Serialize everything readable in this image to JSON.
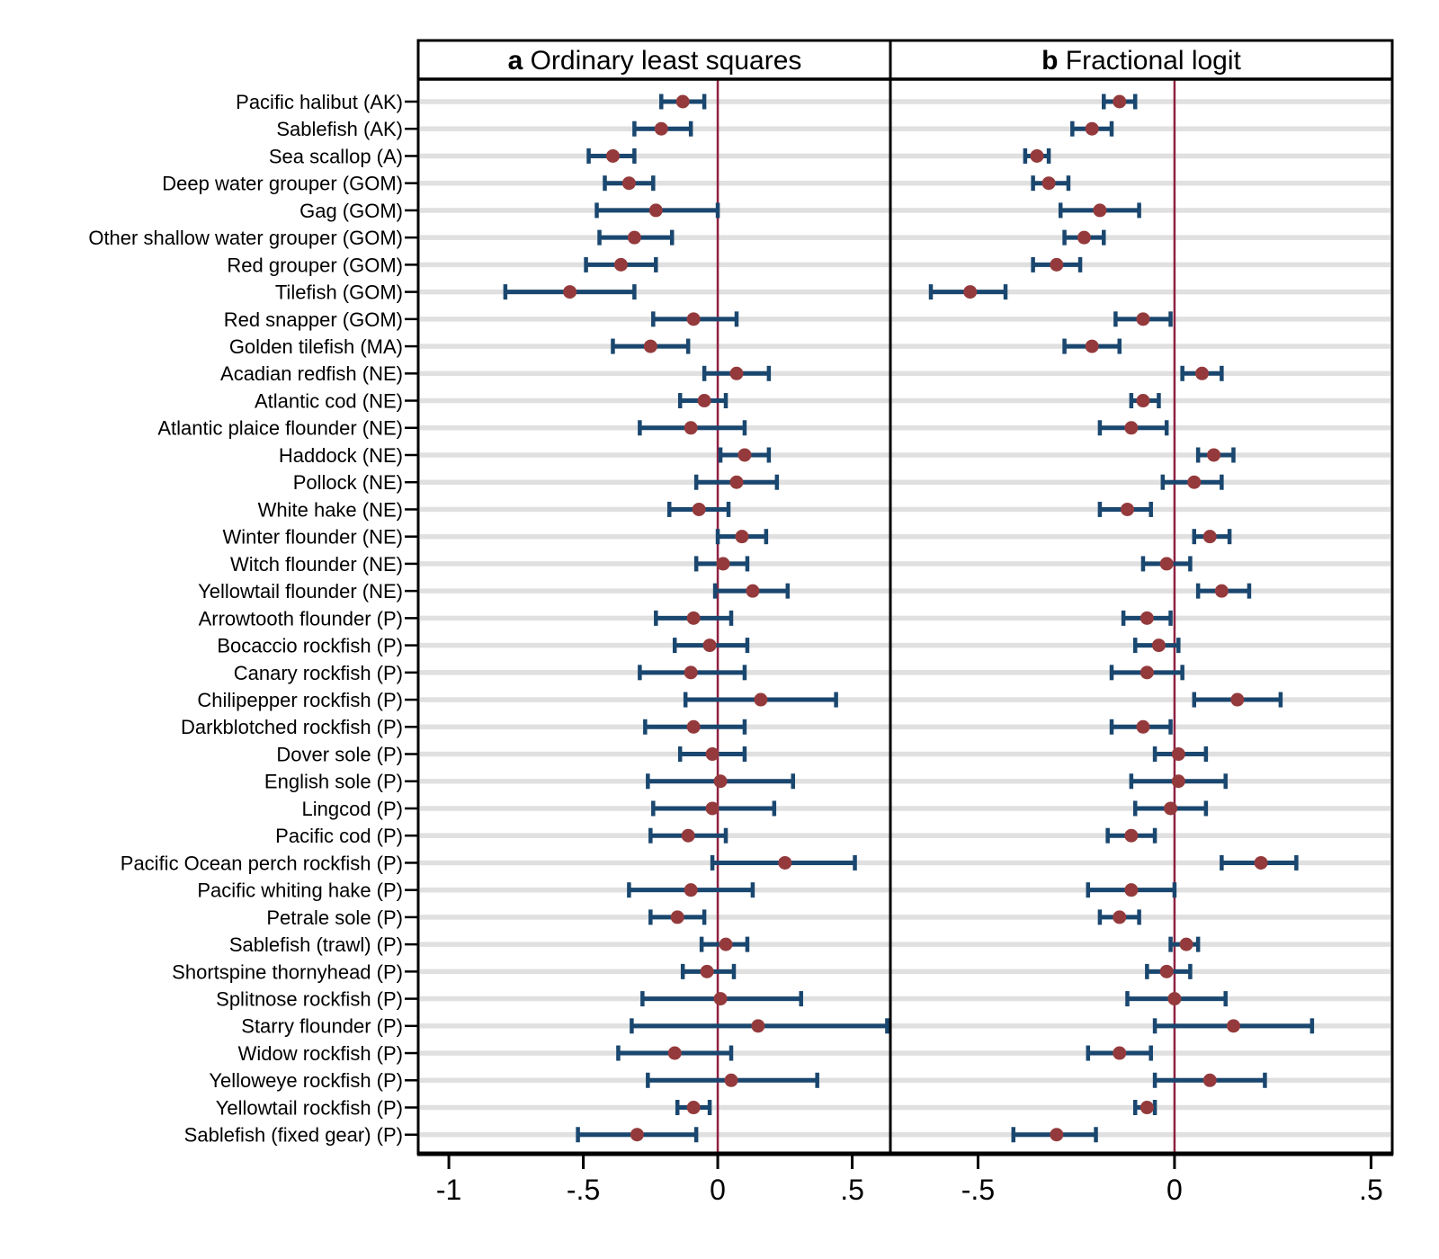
{
  "panels": [
    {
      "prefix": "a",
      "title": " Ordinary least squares",
      "xlim": [
        -1.114,
        0.642
      ],
      "ticks": [
        {
          "v": -1.0,
          "label": "-1"
        },
        {
          "v": -0.5,
          "label": "-.5"
        },
        {
          "v": 0.0,
          "label": "0"
        },
        {
          "v": 0.5,
          "label": ".5"
        }
      ]
    },
    {
      "prefix": "b",
      "title": " Fractional logit",
      "xlim": [
        -0.723,
        0.554
      ],
      "ticks": [
        {
          "v": -0.5,
          "label": "-.5"
        },
        {
          "v": 0.0,
          "label": "0"
        },
        {
          "v": 0.5,
          "label": ".5"
        }
      ]
    }
  ],
  "chart_data": {
    "type": "forest-dot-ci",
    "orientation": "horizontal",
    "grid": true,
    "zero_line": 0,
    "categories": [
      "Pacific halibut (AK)",
      "Sablefish (AK)",
      "Sea scallop (A)",
      "Deep water grouper (GOM)",
      "Gag (GOM)",
      "Other shallow water grouper (GOM)",
      "Red grouper (GOM)",
      "Tilefish (GOM)",
      "Red snapper (GOM)",
      "Golden tilefish (MA)",
      "Acadian redfish (NE)",
      "Atlantic cod (NE)",
      "Atlantic plaice flounder (NE)",
      "Haddock (NE)",
      "Pollock (NE)",
      "White hake (NE)",
      "Winter flounder (NE)",
      "Witch flounder (NE)",
      "Yellowtail flounder (NE)",
      "Arrowtooth flounder (P)",
      "Bocaccio rockfish (P)",
      "Canary rockfish (P)",
      "Chilipepper rockfish (P)",
      "Darkblotched rockfish (P)",
      "Dover sole (P)",
      "English sole (P)",
      "Lingcod (P)",
      "Pacific cod (P)",
      "Pacific Ocean perch rockfish (P)",
      "Pacific whiting hake (P)",
      "Petrale sole (P)",
      "Sablefish (trawl) (P)",
      "Shortspine thornyhead (P)",
      "Splitnose rockfish (P)",
      "Starry flounder (P)",
      "Widow rockfish (P)",
      "Yelloweye rockfish (P)",
      "Yellowtail rockfish (P)",
      "Sablefish (fixed gear) (P)"
    ],
    "series": [
      {
        "name": "Ordinary least squares",
        "estimates": [
          -0.13,
          -0.21,
          -0.39,
          -0.33,
          -0.23,
          -0.31,
          -0.36,
          -0.55,
          -0.09,
          -0.25,
          0.07,
          -0.05,
          -0.1,
          0.1,
          0.07,
          -0.07,
          0.09,
          0.02,
          0.13,
          -0.09,
          -0.03,
          -0.1,
          0.16,
          -0.09,
          -0.02,
          0.01,
          -0.02,
          -0.11,
          0.25,
          -0.1,
          -0.15,
          0.03,
          -0.04,
          0.01,
          0.15,
          -0.16,
          0.05,
          -0.09,
          -0.3
        ],
        "ci_low": [
          -0.21,
          -0.31,
          -0.48,
          -0.42,
          -0.45,
          -0.44,
          -0.49,
          -0.79,
          -0.24,
          -0.39,
          -0.05,
          -0.14,
          -0.29,
          0.01,
          -0.08,
          -0.18,
          0.0,
          -0.08,
          -0.01,
          -0.23,
          -0.16,
          -0.29,
          -0.12,
          -0.27,
          -0.14,
          -0.26,
          -0.24,
          -0.25,
          -0.02,
          -0.33,
          -0.25,
          -0.06,
          -0.13,
          -0.28,
          -0.32,
          -0.37,
          -0.26,
          -0.15,
          -0.52
        ],
        "ci_high": [
          -0.05,
          -0.1,
          -0.31,
          -0.24,
          0.0,
          -0.17,
          -0.23,
          -0.31,
          0.07,
          -0.11,
          0.19,
          0.03,
          0.1,
          0.19,
          0.22,
          0.04,
          0.18,
          0.11,
          0.26,
          0.05,
          0.11,
          0.1,
          0.44,
          0.1,
          0.1,
          0.28,
          0.21,
          0.03,
          0.51,
          0.13,
          -0.05,
          0.11,
          0.06,
          0.31,
          0.63,
          0.05,
          0.37,
          -0.03,
          -0.08
        ]
      },
      {
        "name": "Fractional logit",
        "estimates": [
          -0.14,
          -0.21,
          -0.35,
          -0.32,
          -0.19,
          -0.23,
          -0.3,
          -0.52,
          -0.08,
          -0.21,
          0.07,
          -0.08,
          -0.11,
          0.1,
          0.05,
          -0.12,
          0.09,
          -0.02,
          0.12,
          -0.07,
          -0.04,
          -0.07,
          0.16,
          -0.08,
          0.01,
          0.01,
          -0.01,
          -0.11,
          0.22,
          -0.11,
          -0.14,
          0.03,
          -0.02,
          0.0,
          0.15,
          -0.14,
          0.09,
          -0.07,
          -0.3
        ],
        "ci_low": [
          -0.18,
          -0.26,
          -0.38,
          -0.36,
          -0.29,
          -0.28,
          -0.36,
          -0.62,
          -0.15,
          -0.28,
          0.02,
          -0.11,
          -0.19,
          0.06,
          -0.03,
          -0.19,
          0.05,
          -0.08,
          0.06,
          -0.13,
          -0.1,
          -0.16,
          0.05,
          -0.16,
          -0.05,
          -0.11,
          -0.1,
          -0.17,
          0.12,
          -0.22,
          -0.19,
          -0.01,
          -0.07,
          -0.12,
          -0.05,
          -0.22,
          -0.05,
          -0.1,
          -0.41
        ],
        "ci_high": [
          -0.1,
          -0.16,
          -0.32,
          -0.27,
          -0.09,
          -0.18,
          -0.24,
          -0.43,
          -0.01,
          -0.14,
          0.12,
          -0.04,
          -0.02,
          0.15,
          0.12,
          -0.06,
          0.14,
          0.04,
          0.19,
          -0.01,
          0.01,
          0.02,
          0.27,
          -0.01,
          0.08,
          0.13,
          0.08,
          -0.05,
          0.31,
          0.0,
          -0.09,
          0.06,
          0.04,
          0.13,
          0.35,
          -0.06,
          0.23,
          -0.05,
          -0.2
        ]
      }
    ]
  },
  "colors": {
    "ci_bar": "#1a476f",
    "marker": "#943a3c",
    "zero_line": "#8e2142",
    "grid_band": "#e0e0e0",
    "axis": "#000000",
    "text": "#000000",
    "background": "#ffffff"
  }
}
